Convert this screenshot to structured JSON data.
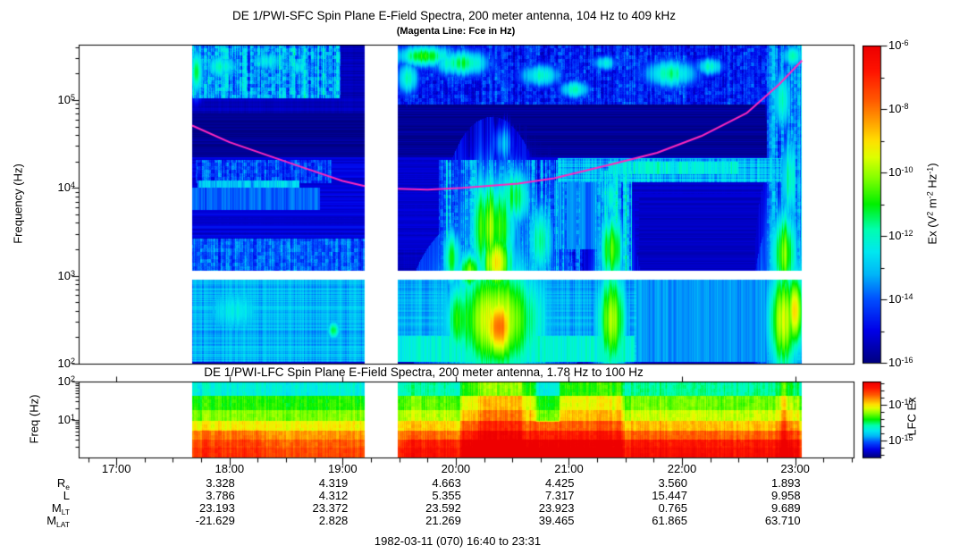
{
  "figure": {
    "sfc_title": "DE 1/PWI-SFC  Spin Plane E-Field Spectra, 200 meter antenna, 104 Hz to 409 kHz",
    "sfc_subtitle": "(Magenta Line: Fce in Hz)",
    "lfc_title": "DE 1/PWI-LFC  Spin Plane E-Field Spectra, 200 meter antenna, 1.78 Hz to 100 Hz",
    "footer": "1982-03-11 (070) 16:40 to 23:31"
  },
  "axes": {
    "x": {
      "start_hours": 16.6667,
      "end_hours": 23.5167,
      "minor_tick_minutes": 15,
      "major_tick_labels": [
        {
          "label": "17:00",
          "hour": 17
        },
        {
          "label": "18:00",
          "hour": 18
        },
        {
          "label": "19:00",
          "hour": 19
        },
        {
          "label": "20:00",
          "hour": 20
        },
        {
          "label": "21:00",
          "hour": 21
        },
        {
          "label": "22:00",
          "hour": 22
        },
        {
          "label": "23:00",
          "hour": 23
        }
      ]
    },
    "sfc_y": {
      "label": "Frequency (Hz)",
      "log_range": [
        2,
        5.63
      ],
      "major_ticks": [
        {
          "base": "10",
          "exp": "5",
          "logv": 5
        },
        {
          "base": "10",
          "exp": "4",
          "logv": 4
        },
        {
          "base": "10",
          "exp": "3",
          "logv": 3
        },
        {
          "base": "10",
          "exp": "2",
          "logv": 2
        }
      ]
    },
    "lfc_y": {
      "label": "Freq (Hz)",
      "log_range": [
        0.02,
        2
      ],
      "major_ticks": [
        {
          "base": "10",
          "exp": "2",
          "logv": 2
        },
        {
          "base": "10",
          "exp": "1",
          "logv": 1
        }
      ]
    }
  },
  "colorbars": {
    "sfc": {
      "value_range": [
        -16,
        -6
      ],
      "title_segments": [
        {
          "t": "Ex (V"
        },
        {
          "e": "2"
        },
        {
          "t": " m"
        },
        {
          "e": "-2"
        },
        {
          "t": " Hz"
        },
        {
          "e": "-1"
        },
        {
          "t": ")"
        }
      ],
      "ticks": [
        {
          "base": "10",
          "exp": "-6",
          "v": -6
        },
        {
          "base": "10",
          "exp": "-8",
          "v": -8
        },
        {
          "base": "10",
          "exp": "-10",
          "v": -10
        },
        {
          "base": "10",
          "exp": "-12",
          "v": -12
        },
        {
          "base": "10",
          "exp": "-14",
          "v": -14
        },
        {
          "base": "10",
          "exp": "-16",
          "v": -16
        }
      ]
    },
    "lfc": {
      "value_range": [
        -17.4,
        -6.75
      ],
      "title": "LFC Ex",
      "ticks": [
        {
          "base": "10",
          "exp": "-10",
          "v": -10
        },
        {
          "base": "10",
          "exp": "-15",
          "v": -15
        }
      ]
    }
  },
  "orbit_table": {
    "value_hours": [
      18,
      19,
      20,
      21,
      22,
      23
    ],
    "rows": [
      {
        "label": {
          "main": "R",
          "sub": "e"
        },
        "values": [
          "3.328",
          "4.319",
          "4.663",
          "4.425",
          "3.560",
          "1.893"
        ]
      },
      {
        "label": {
          "main": "L",
          "sub": ""
        },
        "values": [
          "3.786",
          "4.312",
          "5.355",
          "7.317",
          "15.447",
          "9.958"
        ]
      },
      {
        "label": {
          "main": "M",
          "sub": "LT"
        },
        "values": [
          "23.193",
          "23.372",
          "23.592",
          "23.923",
          "0.765",
          "9.689"
        ]
      },
      {
        "label": {
          "main": "M",
          "sub": "LAT"
        },
        "values": [
          "-21.629",
          "2.828",
          "21.269",
          "39.465",
          "61.865",
          "63.710"
        ]
      }
    ]
  },
  "chart_data": {
    "type": "heatmap",
    "summary": "Two time-frequency spectrograms of DE-1 plasma wave electric field power (rainbow colour scale, log frequency axes) for 1982-03-11 16:40-23:31 UT, with data gaps before 17:40, 19:12-19:29 and after 23:04. Magenta curve = electron cyclotron frequency Fce, minimum ~10 kHz near apogee (~20:00) rising to ~300 kHz at 23:00. Intense broadband bursts (yellow-red) near 20:10-20:40, 21:20-21:30 and 22:50-23:05; auroral kilometric radiation patches above 100 kHz.",
    "time_coverage_hours": [
      [
        17.67,
        19.195
      ],
      [
        19.49,
        23.06
      ]
    ],
    "colormap_stops": [
      [
        0.0,
        "#000082"
      ],
      [
        0.1,
        "#0000E8"
      ],
      [
        0.2,
        "#0050FF"
      ],
      [
        0.28,
        "#00B8F8"
      ],
      [
        0.35,
        "#00E8F0"
      ],
      [
        0.42,
        "#00FFB0"
      ],
      [
        0.5,
        "#00F000"
      ],
      [
        0.58,
        "#80FF00"
      ],
      [
        0.65,
        "#E0FF00"
      ],
      [
        0.7,
        "#FFE000"
      ],
      [
        0.76,
        "#FFA000"
      ],
      [
        0.83,
        "#FF5800"
      ],
      [
        0.92,
        "#FF1400"
      ],
      [
        1.0,
        "#EE0000"
      ]
    ],
    "fce_line": {
      "color": "#FF28BE",
      "points_t_logf": [
        [
          17.67,
          4.71
        ],
        [
          18.0,
          4.52
        ],
        [
          18.36,
          4.36
        ],
        [
          18.7,
          4.21
        ],
        [
          19.0,
          4.08
        ],
        [
          19.195,
          4.02
        ],
        [
          19.49,
          3.99
        ],
        [
          19.75,
          3.98
        ],
        [
          20.06,
          4.0
        ],
        [
          20.55,
          4.05
        ],
        [
          20.87,
          4.11
        ],
        [
          21.38,
          4.27
        ],
        [
          21.78,
          4.4
        ],
        [
          22.17,
          4.59
        ],
        [
          22.57,
          4.85
        ],
        [
          22.86,
          5.18
        ],
        [
          23.06,
          5.45
        ]
      ]
    },
    "sfc": {
      "value_range": [
        -16,
        -6
      ],
      "log_freq_range": [
        2,
        5.63
      ],
      "base_level": -15.45,
      "row_noise": 0.22,
      "col_noise": 0.12,
      "white_gap_logf": [
        2.955,
        3.058
      ],
      "regions": [
        {
          "t": [
            17.67,
            19.2
          ],
          "f": [
            2.02,
            2.955
          ],
          "v": -13.15,
          "cn": 0.5,
          "rn": 0.35
        },
        {
          "t": [
            17.67,
            19.2
          ],
          "f": [
            3.42,
            4.35
          ],
          "v": -15.1,
          "rn": 0.35
        },
        {
          "t": [
            17.67,
            19.2
          ],
          "f": [
            4.35,
            4.85
          ],
          "v": -15.85,
          "rn": 0.3,
          "set": true
        },
        {
          "t": [
            17.67,
            18.8
          ],
          "f": [
            3.75,
            4.0
          ],
          "v": -13.9,
          "cn": 0.55
        },
        {
          "t": [
            17.7,
            18.9
          ],
          "f": [
            4.05,
            4.32
          ],
          "v": -14.2,
          "cn": 0.9,
          "pn": 0.7
        },
        {
          "t": [
            17.72,
            18.62
          ],
          "f": [
            4.0,
            4.08
          ],
          "v": -12.9,
          "cn": 0.9
        },
        {
          "t": [
            17.67,
            19.2
          ],
          "f": [
            3.06,
            3.42
          ],
          "v": -13.9,
          "cn": 0.8,
          "pn": 0.6
        },
        {
          "t": [
            17.67,
            18.98
          ],
          "f": [
            5.02,
            5.62
          ],
          "v": -13.4,
          "cn": 1.3,
          "pn": 0.9
        },
        {
          "t": [
            19.49,
            23.06
          ],
          "f": [
            2.02,
            2.955
          ],
          "v": -13.2,
          "cn": 0.5,
          "rn": 0.3
        },
        {
          "t": [
            19.49,
            23.06
          ],
          "f": [
            3.3,
            4.35
          ],
          "v": -15.25,
          "rn": 0.22
        },
        {
          "t": [
            19.49,
            23.06
          ],
          "f": [
            4.35,
            4.95
          ],
          "v": -15.8,
          "rn": 0.28,
          "set": true
        },
        {
          "t": [
            19.49,
            23.06
          ],
          "f": [
            4.95,
            5.63
          ],
          "v": -14.6,
          "cn": 0.8,
          "pn": 0.8
        },
        {
          "t": [
            21.62,
            22.75
          ],
          "f": [
            2.97,
            3.9
          ],
          "v": -15.35,
          "rn": 0.2,
          "set": true
        },
        {
          "t": [
            19.85,
            21.12
          ],
          "f": [
            2.955,
            4.32
          ],
          "v": -14.0,
          "cn": 1.9,
          "pn": 0.7
        },
        {
          "t": [
            21.22,
            21.56
          ],
          "f": [
            2.955,
            4.2
          ],
          "v": -13.2,
          "cn": 1.6,
          "pn": 0.6
        },
        {
          "t": [
            20.88,
            21.25
          ],
          "f": [
            3.3,
            4.08
          ],
          "v": -13.7,
          "cn": 0.7
        },
        {
          "t": [
            20.9,
            22.88
          ],
          "f": [
            4.06,
            4.34
          ],
          "v": -13.1,
          "cn": 0.8,
          "rn": 0.5
        },
        {
          "t": [
            21.35,
            22.5
          ],
          "f": [
            4.16,
            4.3
          ],
          "v": -12.3,
          "cn": 0.9
        },
        {
          "t": [
            22.75,
            23.06
          ],
          "f": [
            2.955,
            5.63
          ],
          "v": -13.6,
          "cn": 1.5,
          "pn": 0.6
        },
        {
          "t": [
            21.6,
            22.75
          ],
          "f": [
            2.02,
            2.955
          ],
          "v": -13.45,
          "cn": 0.4,
          "set": true
        },
        {
          "t": [
            19.49,
            21.58
          ],
          "f": [
            2.02,
            2.32
          ],
          "v": -12.2,
          "cn": 0.6
        }
      ],
      "blobs": [
        {
          "t": 17.71,
          "f": 5.32,
          "st": 0.05,
          "sf": 0.22,
          "v": -11.3,
          "cn": 0.3
        },
        {
          "t": 17.93,
          "f": 5.38,
          "st": 0.13,
          "sf": 0.13,
          "v": -12.1,
          "cn": 0.6
        },
        {
          "t": 18.33,
          "f": 5.44,
          "st": 0.12,
          "sf": 0.12,
          "v": -12.3,
          "cn": 0.6
        },
        {
          "t": 18.62,
          "f": 5.37,
          "st": 0.1,
          "sf": 0.1,
          "v": -12.5,
          "cn": 0.6
        },
        {
          "t": 18.05,
          "f": 2.6,
          "st": 0.3,
          "sf": 0.3,
          "v": -12.4,
          "cn": 0.4
        },
        {
          "t": 18.92,
          "f": 2.38,
          "st": 0.05,
          "sf": 0.1,
          "v": -11.3,
          "cn": 0.2
        },
        {
          "t": 19.72,
          "f": 5.5,
          "st": 0.2,
          "sf": 0.1,
          "v": -10.9,
          "cn": 0.5
        },
        {
          "t": 20.05,
          "f": 5.42,
          "st": 0.22,
          "sf": 0.13,
          "v": -11.4,
          "cn": 0.5
        },
        {
          "t": 19.58,
          "f": 5.25,
          "st": 0.09,
          "sf": 0.18,
          "v": -11.9,
          "cn": 0.4
        },
        {
          "t": 20.75,
          "f": 5.28,
          "st": 0.18,
          "sf": 0.13,
          "v": -12.1,
          "cn": 0.5
        },
        {
          "t": 21.05,
          "f": 5.12,
          "st": 0.13,
          "sf": 0.1,
          "v": -12.0,
          "cn": 0.5
        },
        {
          "t": 21.32,
          "f": 5.42,
          "st": 0.1,
          "sf": 0.09,
          "v": -12.3,
          "cn": 0.5
        },
        {
          "t": 21.9,
          "f": 5.3,
          "st": 0.22,
          "sf": 0.15,
          "v": -11.8,
          "cn": 0.5
        },
        {
          "t": 22.25,
          "f": 5.38,
          "st": 0.12,
          "sf": 0.1,
          "v": -12.0,
          "cn": 0.5
        },
        {
          "t": 22.98,
          "f": 5.5,
          "st": 0.08,
          "sf": 0.12,
          "v": -11.9,
          "cn": 0.4
        },
        {
          "t": 20.32,
          "f": 3.55,
          "st": 0.16,
          "sf": 0.45,
          "v": -10.2,
          "cn": 0.8
        },
        {
          "t": 20.36,
          "f": 3.15,
          "st": 0.1,
          "sf": 0.25,
          "v": -9.2,
          "cn": 0.6
        },
        {
          "t": 20.52,
          "f": 3.9,
          "st": 0.12,
          "sf": 0.3,
          "v": -11.2,
          "cn": 0.8
        },
        {
          "t": 20.12,
          "f": 3.05,
          "st": 0.08,
          "sf": 0.18,
          "v": -10.2,
          "cn": 0.6
        },
        {
          "t": 19.97,
          "f": 3.2,
          "st": 0.07,
          "sf": 0.3,
          "v": -11.3,
          "cn": 0.8
        },
        {
          "t": 20.75,
          "f": 3.4,
          "st": 0.1,
          "sf": 0.4,
          "v": -11.6,
          "cn": 0.9
        },
        {
          "t": 20.42,
          "f": 4.5,
          "st": 0.09,
          "sf": 0.25,
          "v": -12.9,
          "cn": 0.9
        },
        {
          "t": 21.38,
          "f": 3.3,
          "st": 0.09,
          "sf": 0.35,
          "v": -10.6,
          "cn": 0.7
        },
        {
          "t": 21.36,
          "f": 3.9,
          "st": 0.07,
          "sf": 0.25,
          "v": -12.0,
          "cn": 0.8
        },
        {
          "t": 22.9,
          "f": 3.25,
          "st": 0.09,
          "sf": 0.4,
          "v": -10.3,
          "cn": 0.7
        },
        {
          "t": 22.95,
          "f": 4.1,
          "st": 0.07,
          "sf": 0.5,
          "v": -11.8,
          "cn": 0.8
        },
        {
          "t": 22.88,
          "f": 5.0,
          "st": 0.09,
          "sf": 0.35,
          "v": -12.0,
          "cn": 0.6
        },
        {
          "t": 20.35,
          "f": 2.5,
          "st": 0.28,
          "sf": 0.45,
          "v": -9.4,
          "cn": 0.6
        },
        {
          "t": 20.38,
          "f": 2.42,
          "st": 0.1,
          "sf": 0.25,
          "v": -7.9,
          "cn": 0.4
        },
        {
          "t": 20.02,
          "f": 2.5,
          "st": 0.1,
          "sf": 0.4,
          "v": -10.8,
          "cn": 0.6
        },
        {
          "t": 21.38,
          "f": 2.5,
          "st": 0.1,
          "sf": 0.45,
          "v": -9.9,
          "cn": 0.6
        },
        {
          "t": 22.9,
          "f": 2.5,
          "st": 0.1,
          "sf": 0.45,
          "v": -9.6,
          "cn": 0.6
        },
        {
          "t": 23.0,
          "f": 2.6,
          "st": 0.05,
          "sf": 0.3,
          "v": -8.8,
          "cn": 0.4
        }
      ]
    },
    "lfc": {
      "value_range": [
        -17.4,
        -6.75
      ],
      "log_freq_range": [
        0.02,
        2
      ],
      "col_noise": 0.5,
      "pix_noise": 0.25,
      "freq_bands": [
        {
          "f": [
            1.62,
            2.0
          ],
          "v": -13.4
        },
        {
          "f": [
            1.26,
            1.62
          ],
          "v": -11.9
        },
        {
          "f": [
            0.97,
            1.26
          ],
          "v": -11.2
        },
        {
          "f": [
            0.71,
            0.97
          ],
          "v": -10.2
        },
        {
          "f": [
            0.49,
            0.71
          ],
          "v": -9.2
        },
        {
          "f": [
            0.28,
            0.49
          ],
          "v": -8.6
        },
        {
          "f": [
            0.02,
            0.28
          ],
          "v": -8.3
        }
      ],
      "time_mods": [
        {
          "t": [
            20.02,
            21.5
          ],
          "amp": 1.5
        },
        {
          "t": [
            20.18,
            20.6
          ],
          "amp": 0.8
        },
        {
          "t": [
            20.68,
            20.94
          ],
          "amp": -1.6,
          "f": [
            0.95,
            2.0
          ]
        },
        {
          "t": [
            21.2,
            21.5
          ],
          "amp": 0.2
        },
        {
          "t": [
            21.5,
            23.06
          ],
          "amp": 0.55
        },
        {
          "t": [
            22.8,
            23.06
          ],
          "amp": 0.5
        },
        {
          "t": [
            22.86,
            22.94
          ],
          "amp": 1.0
        },
        {
          "t": [
            19.49,
            20.02
          ],
          "amp": 0.5
        },
        {
          "t": [
            19.49,
            23.06
          ],
          "amp": 0.45,
          "f": [
            0.02,
            0.49
          ]
        },
        {
          "t": [
            17.67,
            18.3
          ],
          "amp": 0.35,
          "f": [
            0.02,
            0.75
          ]
        }
      ]
    }
  }
}
